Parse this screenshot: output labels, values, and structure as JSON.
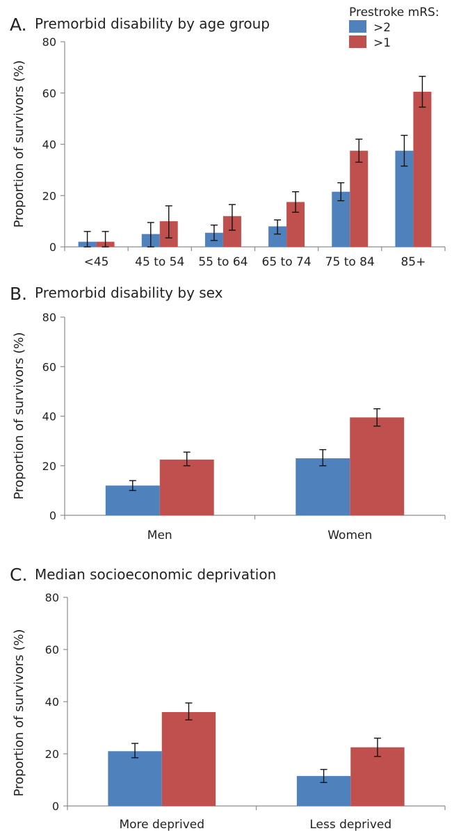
{
  "legend": {
    "title": "Prestroke mRS:",
    "items": [
      {
        "label": ">2",
        "color": "#4f81bd"
      },
      {
        "label": ">1",
        "color": "#c0504d"
      }
    ]
  },
  "chart_data": [
    {
      "type": "bar",
      "panel_letter": "A.",
      "title": "Premorbid disability by age group",
      "xlabel": "",
      "ylabel": "Proportion of survivors (%)",
      "ylim": [
        0,
        80
      ],
      "yticks": [
        0,
        20,
        40,
        60,
        80
      ],
      "grid": false,
      "categories": [
        "<45",
        "45 to 54",
        "55 to 64",
        "65 to 74",
        "75 to 84",
        "85+"
      ],
      "series": [
        {
          "name": ">2",
          "color": "#4f81bd",
          "values": [
            2,
            5,
            5.5,
            8,
            21.5,
            37.5
          ],
          "error_low": [
            0,
            0,
            2.5,
            5,
            18,
            31.5
          ],
          "error_high": [
            6,
            9.5,
            8.5,
            10.5,
            25,
            43.5
          ]
        },
        {
          "name": ">1",
          "color": "#c0504d",
          "values": [
            2,
            10,
            12,
            17.5,
            37.5,
            60.5
          ],
          "error_low": [
            0,
            3.5,
            6.5,
            13.5,
            33,
            54.5
          ],
          "error_high": [
            6,
            16,
            16.5,
            21.5,
            42,
            66.5
          ]
        }
      ]
    },
    {
      "type": "bar",
      "panel_letter": "B.",
      "title": "Premorbid disability by sex",
      "xlabel": "",
      "ylabel": "Proportion of survivors (%)",
      "ylim": [
        0,
        80
      ],
      "yticks": [
        0,
        20,
        40,
        60,
        80
      ],
      "grid": false,
      "categories": [
        "Men",
        "Women"
      ],
      "series": [
        {
          "name": ">2",
          "color": "#4f81bd",
          "values": [
            12,
            23
          ],
          "error_low": [
            10,
            20
          ],
          "error_high": [
            14,
            26.5
          ]
        },
        {
          "name": ">1",
          "color": "#c0504d",
          "values": [
            22.5,
            39.5
          ],
          "error_low": [
            20,
            36
          ],
          "error_high": [
            25.5,
            43
          ]
        }
      ]
    },
    {
      "type": "bar",
      "panel_letter": "C.",
      "title": "Median socioeconomic deprivation",
      "xlabel": "",
      "ylabel": "Proportion of survivors (%)",
      "ylim": [
        0,
        80
      ],
      "yticks": [
        0,
        20,
        40,
        60,
        80
      ],
      "grid": false,
      "categories": [
        "More deprived",
        "Less deprived"
      ],
      "series": [
        {
          "name": ">2",
          "color": "#4f81bd",
          "values": [
            21,
            11.5
          ],
          "error_low": [
            18.5,
            9
          ],
          "error_high": [
            24,
            14
          ]
        },
        {
          "name": ">1",
          "color": "#c0504d",
          "values": [
            36,
            22.5
          ],
          "error_low": [
            33,
            19
          ],
          "error_high": [
            39.5,
            26
          ]
        }
      ]
    }
  ]
}
